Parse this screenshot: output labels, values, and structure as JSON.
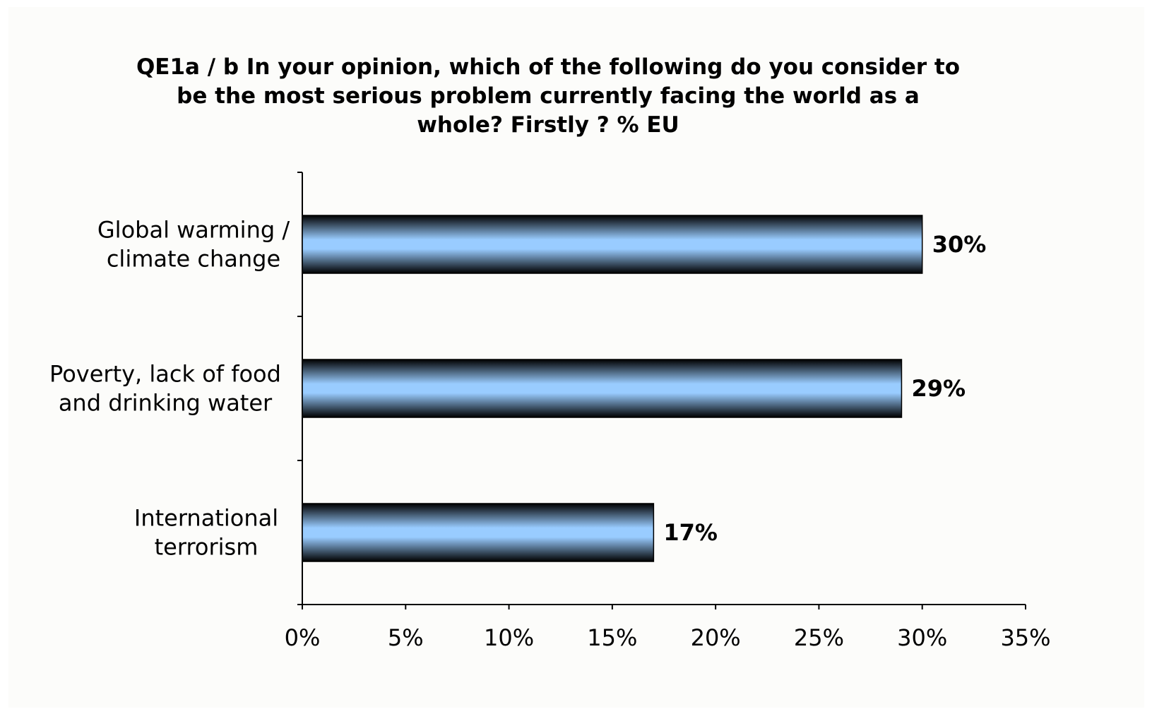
{
  "chart_data": {
    "type": "bar",
    "orientation": "horizontal",
    "title": [
      "QE1a / b In your opinion, which of the following do you consider to",
      "be the most serious problem currently facing the world as a",
      "whole? Firstly ? % EU"
    ],
    "categories": [
      [
        "Global warming /",
        "climate change"
      ],
      [
        "Poverty, lack of food",
        "and drinking water"
      ],
      [
        "International",
        "terrorism"
      ]
    ],
    "values": [
      30,
      29,
      17
    ],
    "data_labels": [
      "30%",
      "29%",
      "17%"
    ],
    "xlim": [
      0,
      35
    ],
    "xticks": [
      0,
      5,
      10,
      15,
      20,
      25,
      30,
      35
    ],
    "xtick_labels": [
      "0%",
      "5%",
      "10%",
      "15%",
      "20%",
      "25%",
      "30%",
      "35%"
    ],
    "xlabel": "",
    "ylabel": "",
    "grid": false,
    "legend": "none",
    "colors": {
      "bar_center": "#99ccff",
      "bar_edge": "#000000",
      "background": "#fcfcfa"
    }
  }
}
